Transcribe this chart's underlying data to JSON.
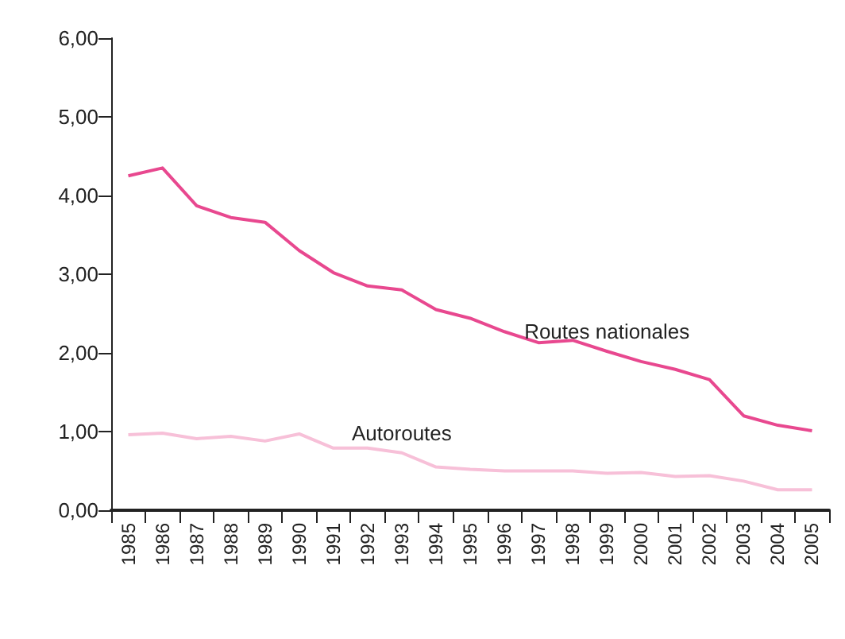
{
  "chart_data": {
    "type": "line",
    "categories": [
      "1985",
      "1986",
      "1987",
      "1988",
      "1989",
      "1990",
      "1991",
      "1992",
      "1993",
      "1994",
      "1995",
      "1996",
      "1997",
      "1998",
      "1999",
      "2000",
      "2001",
      "2002",
      "2003",
      "2004",
      "2005"
    ],
    "series": [
      {
        "name": "Routes nationales",
        "color": "#e8488f",
        "values": [
          4.25,
          4.35,
          3.87,
          3.72,
          3.66,
          3.3,
          3.02,
          2.85,
          2.8,
          2.55,
          2.44,
          2.27,
          2.13,
          2.16,
          2.02,
          1.89,
          1.79,
          1.66,
          1.2,
          1.08,
          1.01
        ]
      },
      {
        "name": "Autoroutes",
        "color": "#f7c0d8",
        "values": [
          0.96,
          0.98,
          0.91,
          0.94,
          0.88,
          0.97,
          0.79,
          0.79,
          0.73,
          0.55,
          0.52,
          0.5,
          0.5,
          0.5,
          0.47,
          0.48,
          0.43,
          0.44,
          0.37,
          0.26,
          0.26
        ]
      }
    ],
    "ylim": [
      0,
      6
    ],
    "yticks": [
      {
        "value": 0,
        "label": "0,00"
      },
      {
        "value": 1,
        "label": "1,00"
      },
      {
        "value": 2,
        "label": "2,00"
      },
      {
        "value": 3,
        "label": "3,00"
      },
      {
        "value": 4,
        "label": "4,00"
      },
      {
        "value": 5,
        "label": "5,00"
      },
      {
        "value": 6,
        "label": "6,00"
      }
    ],
    "grid": false,
    "legend": false,
    "marker": "none",
    "line_style": "solid"
  }
}
